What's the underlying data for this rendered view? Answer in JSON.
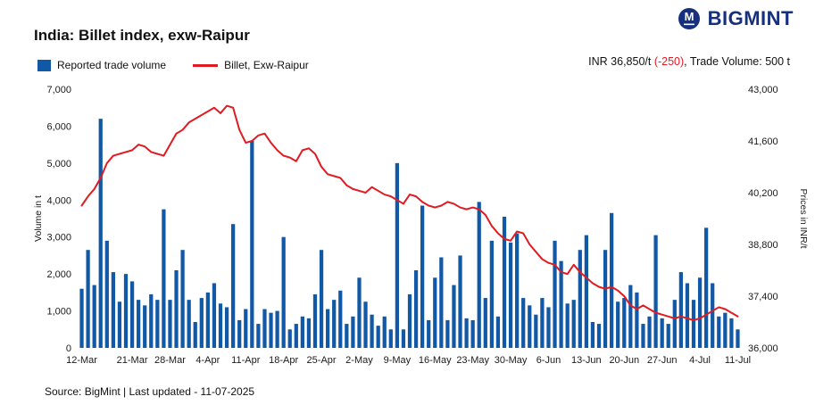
{
  "logo": {
    "brand": "BIGMINT",
    "icon_color": "#16307e"
  },
  "header": {
    "title": "India: Billet index, exw-Raipur",
    "price_label_prefix": "INR 36,850/t ",
    "price_change": "(-250)",
    "price_label_suffix": ", Trade Volume: 500 t"
  },
  "legend": [
    {
      "label": "Reported trade volume",
      "type": "bar",
      "color": "#1159a6"
    },
    {
      "label": "Billet, Exw-Raipur",
      "type": "line",
      "color": "#e11b22"
    }
  ],
  "footer": {
    "source": "Source: BigMint | Last updated - 11-07-2025"
  },
  "chart_data": {
    "type": "combo",
    "title": "India: Billet index, exw-Raipur",
    "grid": false,
    "legend_position": "top-left",
    "x_tick_labels": [
      "12-Mar",
      "21-Mar",
      "28-Mar",
      "4-Apr",
      "11-Apr",
      "18-Apr",
      "25-Apr",
      "2-May",
      "9-May",
      "16-May",
      "23-May",
      "30-May",
      "6-Jun",
      "13-Jun",
      "20-Jun",
      "27-Jun",
      "4-Jul",
      "11-Jul"
    ],
    "x_tick_indices": [
      0,
      8,
      14,
      20,
      26,
      32,
      38,
      44,
      50,
      56,
      62,
      68,
      74,
      80,
      86,
      92,
      98,
      104
    ],
    "left_axis": {
      "label": "Volume in t",
      "min": 0,
      "max": 7000,
      "ticks": [
        0,
        1000,
        2000,
        3000,
        4000,
        5000,
        6000,
        7000
      ]
    },
    "right_axis": {
      "label": "Prices in INR/t",
      "min": 36000,
      "max": 43000,
      "ticks": [
        36000,
        37400,
        38800,
        40200,
        41600,
        43000
      ]
    },
    "series": [
      {
        "name": "Reported trade volume",
        "type": "bar",
        "axis": "left",
        "color": "#1159a6",
        "values": [
          1600,
          2650,
          1700,
          6200,
          2900,
          2050,
          1250,
          2000,
          1800,
          1300,
          1150,
          1450,
          1300,
          3750,
          1300,
          2100,
          2650,
          1300,
          700,
          1350,
          1500,
          1750,
          1200,
          1100,
          3350,
          750,
          1050,
          5600,
          650,
          1050,
          950,
          1000,
          3000,
          500,
          650,
          850,
          800,
          1450,
          2650,
          1050,
          1300,
          1550,
          650,
          850,
          1900,
          1250,
          900,
          600,
          850,
          500,
          5000,
          500,
          1450,
          2100,
          3850,
          750,
          1900,
          2450,
          750,
          1700,
          2500,
          800,
          750,
          3950,
          1350,
          2900,
          850,
          3550,
          2850,
          3100,
          1350,
          1150,
          900,
          1350,
          1100,
          2900,
          2350,
          1200,
          1300,
          2650,
          3050,
          700,
          650,
          2650,
          3650,
          1250,
          1350,
          1700,
          1500,
          650,
          850,
          3050,
          800,
          650,
          1300,
          2050,
          1750,
          1300,
          1900,
          3250,
          1750,
          850,
          950,
          800,
          500
        ]
      },
      {
        "name": "Billet, Exw-Raipur",
        "type": "line",
        "axis": "right",
        "color": "#e11b22",
        "values": [
          39850,
          40100,
          40300,
          40600,
          41000,
          41200,
          41250,
          41300,
          41350,
          41500,
          41450,
          41300,
          41250,
          41200,
          41500,
          41800,
          41900,
          42100,
          42200,
          42300,
          42400,
          42500,
          42350,
          42550,
          42500,
          41900,
          41550,
          41600,
          41750,
          41800,
          41550,
          41350,
          41200,
          41150,
          41050,
          41350,
          41400,
          41250,
          40900,
          40700,
          40650,
          40600,
          40400,
          40300,
          40250,
          40200,
          40350,
          40250,
          40150,
          40100,
          40000,
          39900,
          40150,
          40100,
          39950,
          39850,
          39800,
          39850,
          39950,
          39900,
          39800,
          39750,
          39800,
          39750,
          39600,
          39300,
          39100,
          38950,
          38900,
          39150,
          39100,
          38800,
          38600,
          38400,
          38300,
          38250,
          38050,
          38000,
          38250,
          38050,
          37900,
          37750,
          37650,
          37600,
          37650,
          37550,
          37400,
          37150,
          37050,
          37150,
          37050,
          36950,
          36900,
          36850,
          36800,
          36850,
          36800,
          36750,
          36800,
          36900,
          37000,
          37100,
          37050,
          36950,
          36850
        ]
      }
    ]
  }
}
